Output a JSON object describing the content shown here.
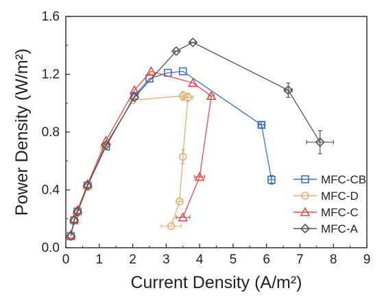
{
  "chart_data": {
    "type": "scatter",
    "xlabel": "Current Density (A/m²)",
    "ylabel": "Power Density (W/m²)",
    "xlim": [
      0,
      9
    ],
    "ylim": [
      0,
      1.6
    ],
    "xticks": [
      "0",
      "1",
      "2",
      "3",
      "4",
      "5",
      "6",
      "7",
      "8",
      "9"
    ],
    "yticks": [
      "0.0",
      "0.4",
      "0.8",
      "1.2",
      "1.6"
    ],
    "grid": false,
    "legend_position": "bottom-right",
    "series": [
      {
        "name": "MFC-CB",
        "color": "#3b6fb6",
        "marker": "square",
        "points": [
          {
            "x": 0.15,
            "y": 0.08
          },
          {
            "x": 0.25,
            "y": 0.19
          },
          {
            "x": 0.35,
            "y": 0.25
          },
          {
            "x": 0.65,
            "y": 0.43
          },
          {
            "x": 1.2,
            "y": 0.7
          },
          {
            "x": 2.05,
            "y": 1.05
          },
          {
            "x": 2.5,
            "y": 1.17
          },
          {
            "x": 3.05,
            "y": 1.21
          },
          {
            "x": 3.5,
            "y": 1.22
          },
          {
            "x": 5.85,
            "y": 0.85,
            "xerr": 0.08,
            "yerr": 0.02
          },
          {
            "x": 6.15,
            "y": 0.47,
            "xerr": 0.1,
            "yerr": 0.03
          }
        ]
      },
      {
        "name": "MFC-D",
        "color": "#e0b074",
        "marker": "circle",
        "points": [
          {
            "x": 3.15,
            "y": 0.15,
            "xerr": 0.3
          },
          {
            "x": 3.4,
            "y": 0.32,
            "xerr": 0.1
          },
          {
            "x": 3.5,
            "y": 0.63,
            "yerr": 0.05
          },
          {
            "x": 3.65,
            "y": 1.04,
            "xerr": 0.15,
            "yerr": 0.03
          },
          {
            "x": 3.5,
            "y": 1.05,
            "xerr": 0.05,
            "yerr": 0.03
          },
          {
            "x": 2.0,
            "y": 1.02
          },
          {
            "x": 1.15,
            "y": 0.7
          },
          {
            "x": 0.65,
            "y": 0.42
          },
          {
            "x": 0.35,
            "y": 0.24
          },
          {
            "x": 0.25,
            "y": 0.19
          },
          {
            "x": 0.15,
            "y": 0.08
          }
        ]
      },
      {
        "name": "MFC-C",
        "color": "#e8474b",
        "marker": "triangle",
        "points": [
          {
            "x": 3.5,
            "y": 0.21,
            "xerr": 0.2
          },
          {
            "x": 4.0,
            "y": 0.49,
            "xerr": 0.15
          },
          {
            "x": 4.35,
            "y": 1.05,
            "xerr": 0.08
          },
          {
            "x": 3.8,
            "y": 1.14
          },
          {
            "x": 2.55,
            "y": 1.22
          },
          {
            "x": 2.05,
            "y": 1.09
          },
          {
            "x": 1.2,
            "y": 0.74
          },
          {
            "x": 0.65,
            "y": 0.44
          },
          {
            "x": 0.35,
            "y": 0.26
          },
          {
            "x": 0.25,
            "y": 0.2
          },
          {
            "x": 0.15,
            "y": 0.09
          }
        ]
      },
      {
        "name": "MFC-A",
        "color": "#555555",
        "marker": "diamond",
        "points": [
          {
            "x": 7.6,
            "y": 0.73,
            "xerr": 0.4,
            "yerr": 0.08
          },
          {
            "x": 6.65,
            "y": 1.09,
            "xerr": 0.12,
            "yerr": 0.05
          },
          {
            "x": 3.8,
            "y": 1.42,
            "xerr": 0.08
          },
          {
            "x": 3.3,
            "y": 1.36,
            "xerr": 0.06
          },
          {
            "x": 2.05,
            "y": 1.04
          },
          {
            "x": 1.2,
            "y": 0.71
          },
          {
            "x": 0.65,
            "y": 0.43
          },
          {
            "x": 0.35,
            "y": 0.25
          },
          {
            "x": 0.25,
            "y": 0.19
          },
          {
            "x": 0.15,
            "y": 0.08
          }
        ]
      }
    ]
  }
}
